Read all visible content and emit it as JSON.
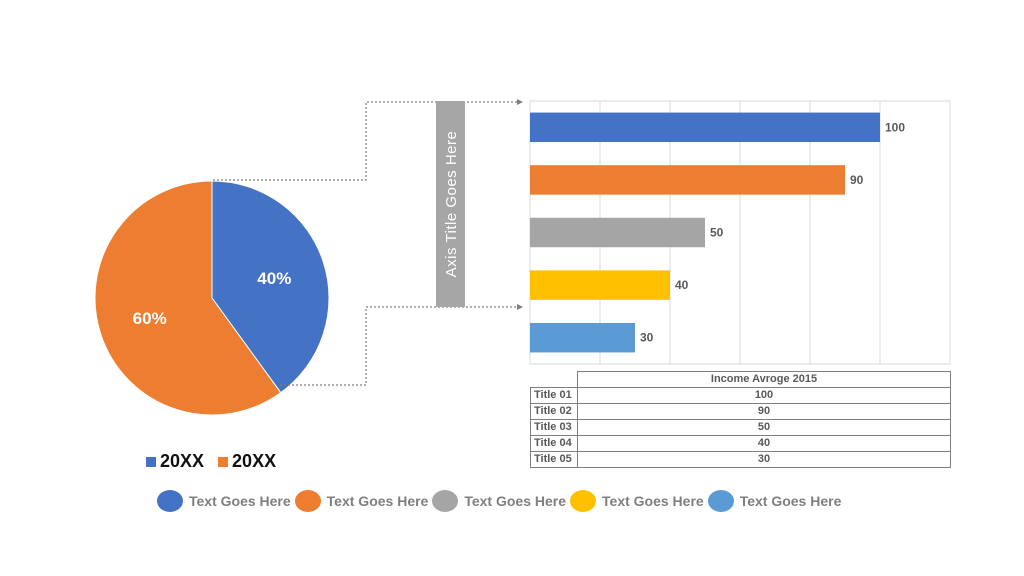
{
  "chart_data": [
    {
      "type": "pie",
      "slices": [
        {
          "label": "20XX",
          "value": 40,
          "text": "40%",
          "color": "#4472C4"
        },
        {
          "label": "20XX",
          "value": 60,
          "text": "60%",
          "color": "#ED7D31"
        }
      ],
      "legend": [
        "20XX",
        "20XX"
      ],
      "legend_position": "bottom"
    },
    {
      "type": "bar",
      "orientation": "horizontal",
      "categories": [
        "Title 01",
        "Title 02",
        "Title 03",
        "Title 04",
        "Title 05"
      ],
      "values": [
        100,
        90,
        50,
        40,
        30
      ],
      "colors": [
        "#4472C4",
        "#ED7D31",
        "#A5A5A5",
        "#FFC000",
        "#5B9BD5"
      ],
      "xlim": [
        0,
        120
      ],
      "grid": true,
      "axis_title": "Axis Title Goes Here"
    },
    {
      "type": "table",
      "header": "Income Avroge 2015",
      "rows": [
        {
          "label": "Title 01",
          "value": "100"
        },
        {
          "label": "Title 02",
          "value": "90"
        },
        {
          "label": "Title 03",
          "value": "50"
        },
        {
          "label": "Title 04",
          "value": "40"
        },
        {
          "label": "Title 05",
          "value": "30"
        }
      ]
    }
  ],
  "bottom_legend": [
    {
      "text": "Text Goes Here",
      "color": "#4472C4"
    },
    {
      "text": "Text Goes Here",
      "color": "#ED7D31"
    },
    {
      "text": "Text Goes Here",
      "color": "#A5A5A5"
    },
    {
      "text": "Text Goes Here",
      "color": "#FFC000"
    },
    {
      "text": "Text Goes Here",
      "color": "#5B9BD5"
    }
  ]
}
